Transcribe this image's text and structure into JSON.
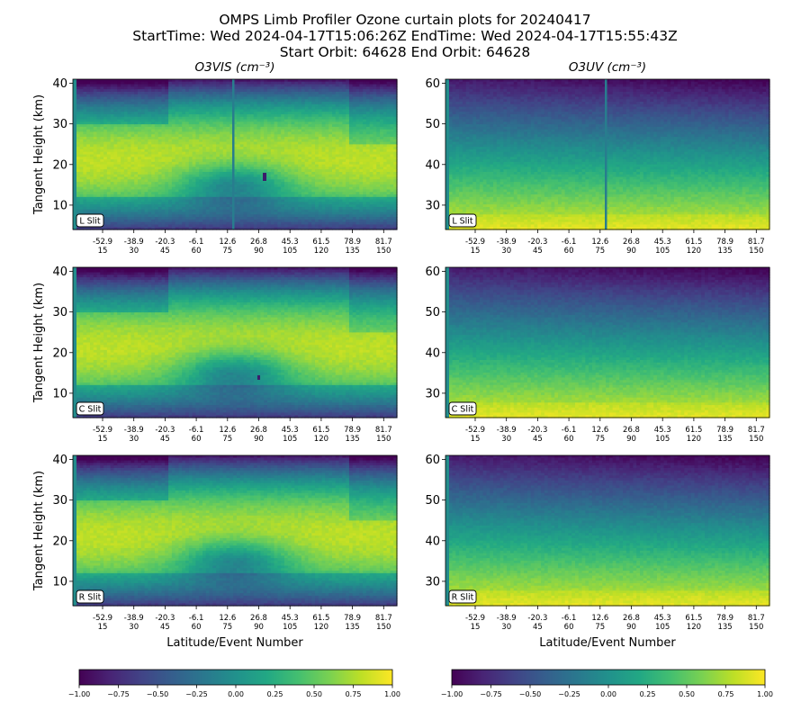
{
  "title": {
    "line1": "OMPS Limb Profiler Ozone curtain plots for 20240417",
    "line2": "StartTime: Wed 2024-04-17T15:06:26Z  EndTime: Wed 2024-04-17T15:55:43Z",
    "line3": "Start Orbit: 64628 End Orbit: 64628"
  },
  "chart_data": [
    {
      "type": "heatmap",
      "panel": "left-top",
      "column_title": "O3VIS (cm⁻³)",
      "ylabel": "Tangent Height (km)",
      "xlabel": "",
      "slit": "L Slit",
      "ylim": [
        4,
        41
      ],
      "yticks": [
        10,
        20,
        30,
        40
      ],
      "x_tick_labels_latitude": [
        "-52.9",
        "-38.9",
        "-20.3",
        "-6.1",
        "12.6",
        "26.8",
        "45.3",
        "61.5",
        "78.9",
        "81.7"
      ],
      "x_tick_labels_event": [
        "15",
        "30",
        "45",
        "60",
        "75",
        "90",
        "105",
        "120",
        "135",
        "150"
      ],
      "colormap": "viridis"
    },
    {
      "type": "heatmap",
      "panel": "right-top",
      "column_title": "O3UV (cm⁻³)",
      "ylabel": "",
      "xlabel": "",
      "slit": "L Slit",
      "ylim": [
        24,
        61
      ],
      "yticks": [
        30,
        40,
        50,
        60
      ],
      "x_tick_labels_latitude": [
        "-52.9",
        "-38.9",
        "-20.3",
        "-6.1",
        "12.6",
        "26.8",
        "45.3",
        "61.5",
        "78.9",
        "81.7"
      ],
      "x_tick_labels_event": [
        "15",
        "30",
        "45",
        "60",
        "75",
        "90",
        "105",
        "120",
        "135",
        "150"
      ],
      "colormap": "viridis"
    },
    {
      "type": "heatmap",
      "panel": "left-middle",
      "ylabel": "Tangent Height (km)",
      "xlabel": "",
      "slit": "C Slit",
      "ylim": [
        4,
        41
      ],
      "yticks": [
        10,
        20,
        30,
        40
      ],
      "x_tick_labels_latitude": [
        "-52.9",
        "-38.9",
        "-20.3",
        "-6.1",
        "12.6",
        "26.8",
        "45.3",
        "61.5",
        "78.9",
        "81.7"
      ],
      "x_tick_labels_event": [
        "15",
        "30",
        "45",
        "60",
        "75",
        "90",
        "105",
        "120",
        "135",
        "150"
      ],
      "colormap": "viridis"
    },
    {
      "type": "heatmap",
      "panel": "right-middle",
      "ylabel": "",
      "xlabel": "",
      "slit": "C Slit",
      "ylim": [
        24,
        61
      ],
      "yticks": [
        30,
        40,
        50,
        60
      ],
      "x_tick_labels_latitude": [
        "-52.9",
        "-38.9",
        "-20.3",
        "-6.1",
        "12.6",
        "26.8",
        "45.3",
        "61.5",
        "78.9",
        "81.7"
      ],
      "x_tick_labels_event": [
        "15",
        "30",
        "45",
        "60",
        "75",
        "90",
        "105",
        "120",
        "135",
        "150"
      ],
      "colormap": "viridis"
    },
    {
      "type": "heatmap",
      "panel": "left-bottom",
      "ylabel": "Tangent Height (km)",
      "xlabel": "Latitude/Event Number",
      "slit": "R Slit",
      "ylim": [
        4,
        41
      ],
      "yticks": [
        10,
        20,
        30,
        40
      ],
      "x_tick_labels_latitude": [
        "-52.9",
        "-38.9",
        "-20.3",
        "-6.1",
        "12.6",
        "26.8",
        "45.3",
        "61.5",
        "78.9",
        "81.7"
      ],
      "x_tick_labels_event": [
        "15",
        "30",
        "45",
        "60",
        "75",
        "90",
        "105",
        "120",
        "135",
        "150"
      ],
      "colormap": "viridis"
    },
    {
      "type": "heatmap",
      "panel": "right-bottom",
      "ylabel": "",
      "xlabel": "Latitude/Event Number",
      "slit": "R Slit",
      "ylim": [
        24,
        61
      ],
      "yticks": [
        30,
        40,
        50,
        60
      ],
      "x_tick_labels_latitude": [
        "-52.9",
        "-38.9",
        "-20.3",
        "-6.1",
        "12.6",
        "26.8",
        "45.3",
        "61.5",
        "78.9",
        "81.7"
      ],
      "x_tick_labels_event": [
        "15",
        "30",
        "45",
        "60",
        "75",
        "90",
        "105",
        "120",
        "135",
        "150"
      ],
      "colormap": "viridis"
    }
  ],
  "colorbars": [
    {
      "range": [
        -1.0,
        1.0
      ],
      "tick_labels": [
        "−1.00",
        "−0.75",
        "−0.50",
        "−0.25",
        "0.00",
        "0.25",
        "0.50",
        "0.75",
        "1.00"
      ],
      "colormap": "viridis"
    },
    {
      "range": [
        -1.0,
        1.0
      ],
      "tick_labels": [
        "−1.00",
        "−0.75",
        "−0.50",
        "−0.25",
        "0.00",
        "0.25",
        "0.50",
        "0.75",
        "1.00"
      ],
      "colormap": "viridis"
    }
  ]
}
